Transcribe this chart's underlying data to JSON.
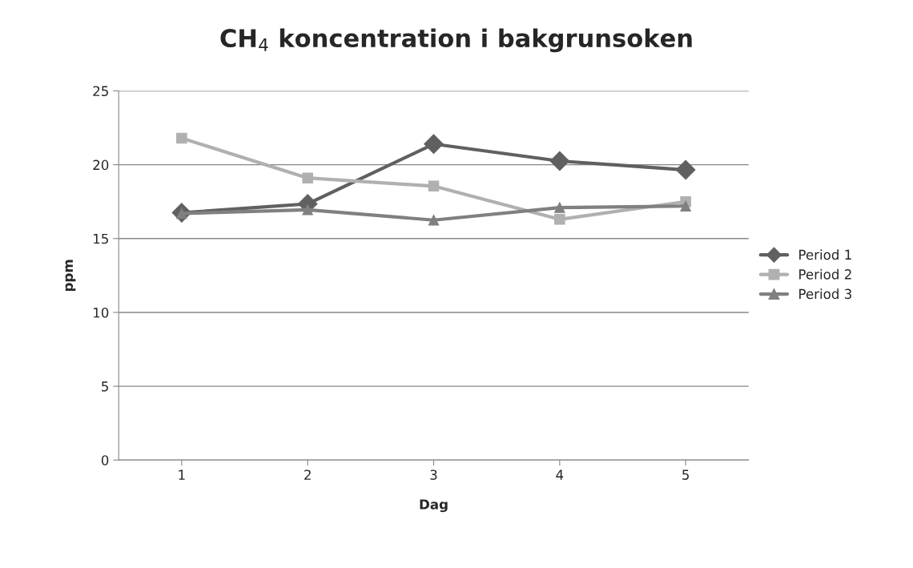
{
  "chart_data": {
    "type": "line",
    "title": "CH$_{4}$ koncentration i bakgrunsoken",
    "xlabel": "Dag",
    "ylabel": "ppm",
    "categories": [
      "1",
      "2",
      "3",
      "4",
      "5"
    ],
    "series": [
      {
        "name": "Period 1",
        "color": "#606060",
        "marker": "diamond",
        "values": [
          16.75,
          17.35,
          21.4,
          20.25,
          19.65
        ]
      },
      {
        "name": "Period 2",
        "color": "#b0b0b0",
        "marker": "square",
        "values": [
          21.8,
          19.1,
          18.55,
          16.3,
          17.5
        ]
      },
      {
        "name": "Period 3",
        "color": "#808080",
        "marker": "triangle",
        "values": [
          16.7,
          16.95,
          16.25,
          17.1,
          17.2
        ]
      }
    ],
    "ylim": [
      0,
      25
    ],
    "yticks": [
      0,
      5,
      10,
      15,
      20,
      25
    ],
    "grid": "y",
    "legend": "right"
  }
}
